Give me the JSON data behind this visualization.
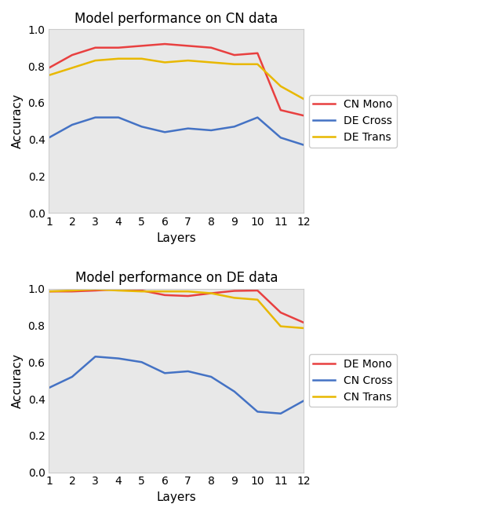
{
  "layers": [
    1,
    2,
    3,
    4,
    5,
    6,
    7,
    8,
    9,
    10,
    11,
    12
  ],
  "cn_data": {
    "title": "Model performance on CN data",
    "CN_Mono": [
      0.79,
      0.86,
      0.9,
      0.9,
      0.91,
      0.92,
      0.91,
      0.9,
      0.86,
      0.87,
      0.56,
      0.53
    ],
    "DE_Cross": [
      0.41,
      0.48,
      0.52,
      0.52,
      0.47,
      0.44,
      0.46,
      0.45,
      0.47,
      0.52,
      0.41,
      0.37
    ],
    "DE_Trans": [
      0.75,
      0.79,
      0.83,
      0.84,
      0.84,
      0.82,
      0.83,
      0.82,
      0.81,
      0.81,
      0.69,
      0.62
    ],
    "legend": [
      "CN Mono",
      "DE Cross",
      "DE Trans"
    ],
    "colors": [
      "#e84040",
      "#4472c4",
      "#e8b800"
    ]
  },
  "de_data": {
    "title": "Model performance on DE data",
    "DE_Mono": [
      0.985,
      0.985,
      0.99,
      0.997,
      0.99,
      0.965,
      0.96,
      0.975,
      0.988,
      0.99,
      0.87,
      0.815
    ],
    "CN_Cross": [
      0.46,
      0.52,
      0.63,
      0.62,
      0.6,
      0.54,
      0.55,
      0.52,
      0.44,
      0.33,
      0.32,
      0.39
    ],
    "CN_Trans": [
      0.985,
      0.99,
      0.997,
      0.99,
      0.985,
      0.985,
      0.985,
      0.975,
      0.95,
      0.94,
      0.795,
      0.785
    ],
    "legend": [
      "DE Mono",
      "CN Cross",
      "CN Trans"
    ],
    "colors": [
      "#e84040",
      "#4472c4",
      "#e8b800"
    ]
  },
  "xlabel": "Layers",
  "ylabel": "Accuracy",
  "ylim": [
    0.0,
    1.0
  ],
  "yticks": [
    0.0,
    0.2,
    0.4,
    0.6,
    0.8,
    1.0
  ],
  "figsize": [
    6.4,
    6.56
  ],
  "dpi": 100,
  "axes_facecolor": "#e8e8e8",
  "fig_facecolor": "#ffffff",
  "title_fontsize": 12,
  "label_fontsize": 11,
  "legend_fontsize": 10,
  "linewidth": 1.8
}
